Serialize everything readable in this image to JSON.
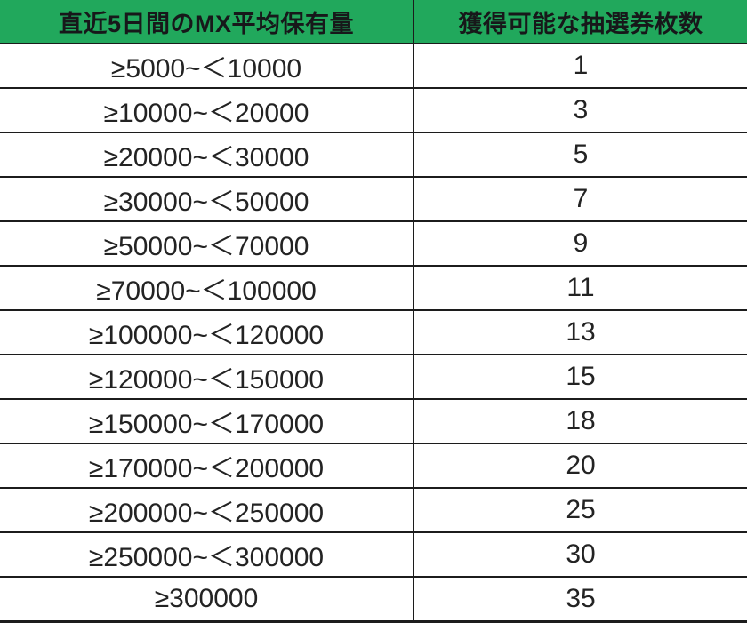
{
  "table": {
    "headers": [
      "直近5日間のMX平均保有量",
      "獲得可能な抽選券枚数"
    ],
    "rows": [
      {
        "range": "≥5000~＜10000",
        "tickets": "1"
      },
      {
        "range": "≥10000~＜20000",
        "tickets": "3"
      },
      {
        "range": "≥20000~＜30000",
        "tickets": "5"
      },
      {
        "range": "≥30000~＜50000",
        "tickets": "7"
      },
      {
        "range": "≥50000~＜70000",
        "tickets": "9"
      },
      {
        "range": "≥70000~＜100000",
        "tickets": "11"
      },
      {
        "range": "≥100000~＜120000",
        "tickets": "13"
      },
      {
        "range": "≥120000~＜150000",
        "tickets": "15"
      },
      {
        "range": "≥150000~＜170000",
        "tickets": "18"
      },
      {
        "range": "≥170000~＜200000",
        "tickets": "20"
      },
      {
        "range": "≥200000~＜250000",
        "tickets": "25"
      },
      {
        "range": "≥250000~＜300000",
        "tickets": "30"
      },
      {
        "range": "≥300000",
        "tickets": "35"
      }
    ]
  },
  "colors": {
    "header_bg": "#21a85c",
    "header_text": "#17181a",
    "body_text": "#232323",
    "grid_line": "#1c1c1c",
    "background": "#ffffff"
  },
  "chart_data": {
    "type": "table",
    "columns": [
      "直近5日間のMX平均保有量",
      "獲得可能な抽選券枚数"
    ],
    "categories": [
      "≥5000~＜10000",
      "≥10000~＜20000",
      "≥20000~＜30000",
      "≥30000~＜50000",
      "≥50000~＜70000",
      "≥70000~＜100000",
      "≥100000~＜120000",
      "≥120000~＜150000",
      "≥150000~＜170000",
      "≥170000~＜200000",
      "≥200000~＜250000",
      "≥250000~＜300000",
      "≥300000"
    ],
    "values": [
      1,
      3,
      5,
      7,
      9,
      11,
      13,
      15,
      18,
      20,
      25,
      30,
      35
    ]
  }
}
